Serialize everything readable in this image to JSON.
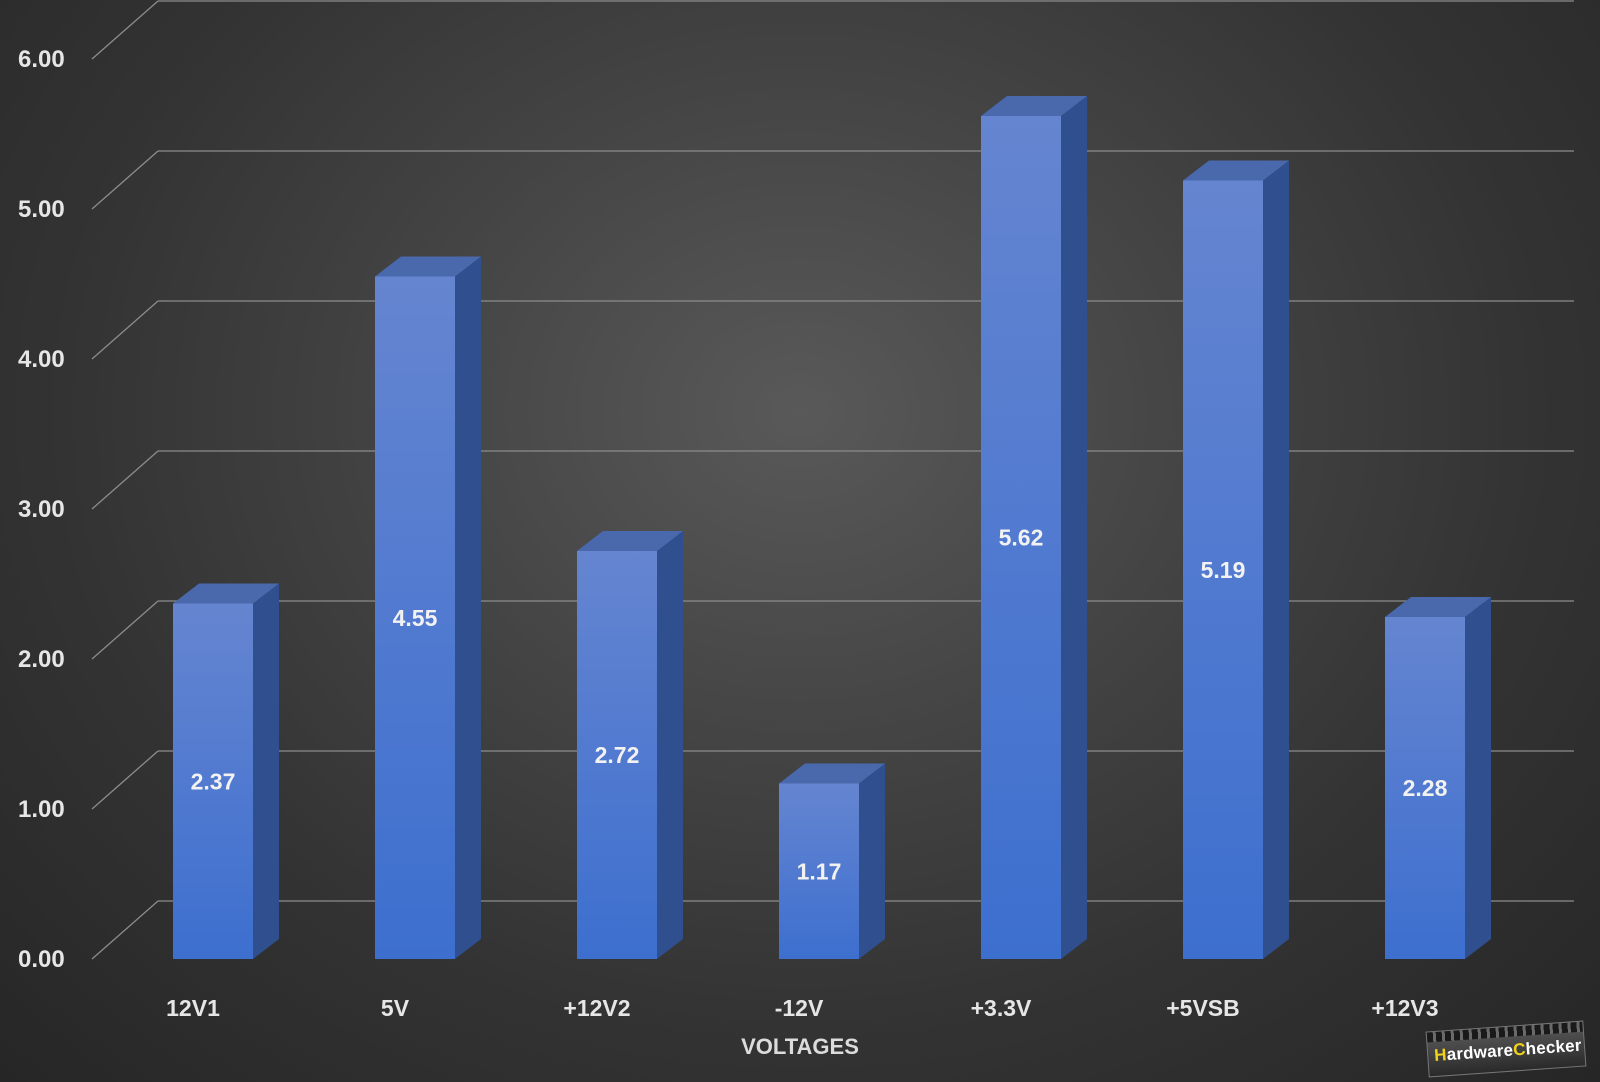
{
  "chart_data": {
    "type": "bar",
    "style": "3d-column",
    "categories": [
      "12V1",
      "5V",
      "+12V2",
      "-12V",
      "+3.3V",
      "+5VSB",
      "+12V3"
    ],
    "values": [
      2.37,
      4.55,
      2.72,
      1.17,
      5.62,
      5.19,
      2.28
    ],
    "data_labels": [
      "2.37",
      "4.55",
      "2.72",
      "1.17",
      "5.62",
      "5.19",
      "2.28"
    ],
    "y_ticks": [
      "0.00",
      "1.00",
      "2.00",
      "3.00",
      "4.00",
      "5.00",
      "6.00"
    ],
    "ylim": [
      0,
      6
    ],
    "xlabel": "VOLTAGES",
    "ylabel": "",
    "title": "",
    "grid": true,
    "legend": "none",
    "colors": {
      "bar_front_top": "#6585d0",
      "bar_front_bottom": "#3d6fcf",
      "bar_side": "#2f4f8e",
      "bar_top": "#4a69ad",
      "gridline": "#8c8c8c"
    }
  },
  "watermark": {
    "text_first_letter": "H",
    "text_middle": "ardware",
    "text_c": "C",
    "text_rest": "hecker"
  }
}
